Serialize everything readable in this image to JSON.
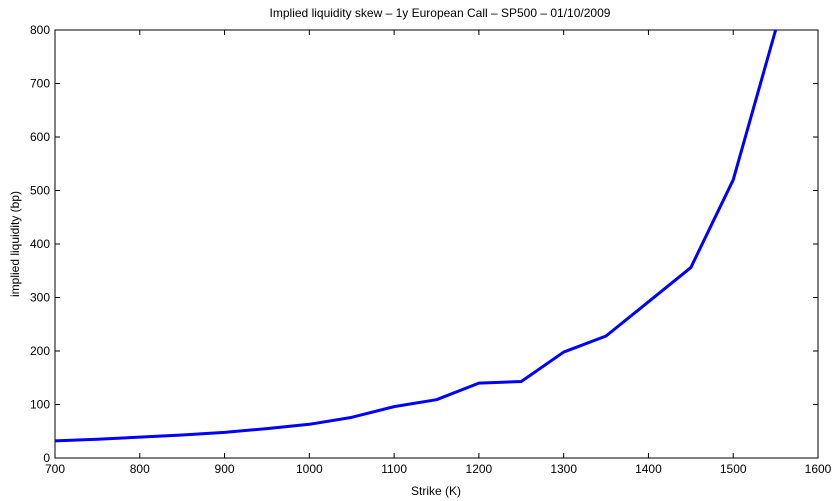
{
  "chart_data": {
    "type": "line",
    "title": "Implied liquidity skew – 1y  European Call – SP500 – 01/10/2009",
    "xlabel": "Strike (K)",
    "ylabel": "implied liquidity (bp)",
    "xlim": [
      700,
      1600
    ],
    "ylim": [
      0,
      800
    ],
    "xticks": [
      700,
      800,
      900,
      1000,
      1100,
      1200,
      1300,
      1400,
      1500,
      1600
    ],
    "yticks": [
      0,
      100,
      200,
      300,
      400,
      500,
      600,
      700,
      800
    ],
    "grid": false,
    "series": [
      {
        "color": "#0000ff",
        "x": [
          700,
          750,
          800,
          850,
          900,
          950,
          1000,
          1050,
          1100,
          1150,
          1200,
          1250,
          1300,
          1350,
          1400,
          1450,
          1500,
          1550
        ],
        "y": [
          32,
          35,
          39,
          43,
          48,
          55,
          63,
          76,
          96,
          109,
          140,
          143,
          198,
          228,
          292,
          356,
          520,
          800
        ]
      }
    ]
  }
}
